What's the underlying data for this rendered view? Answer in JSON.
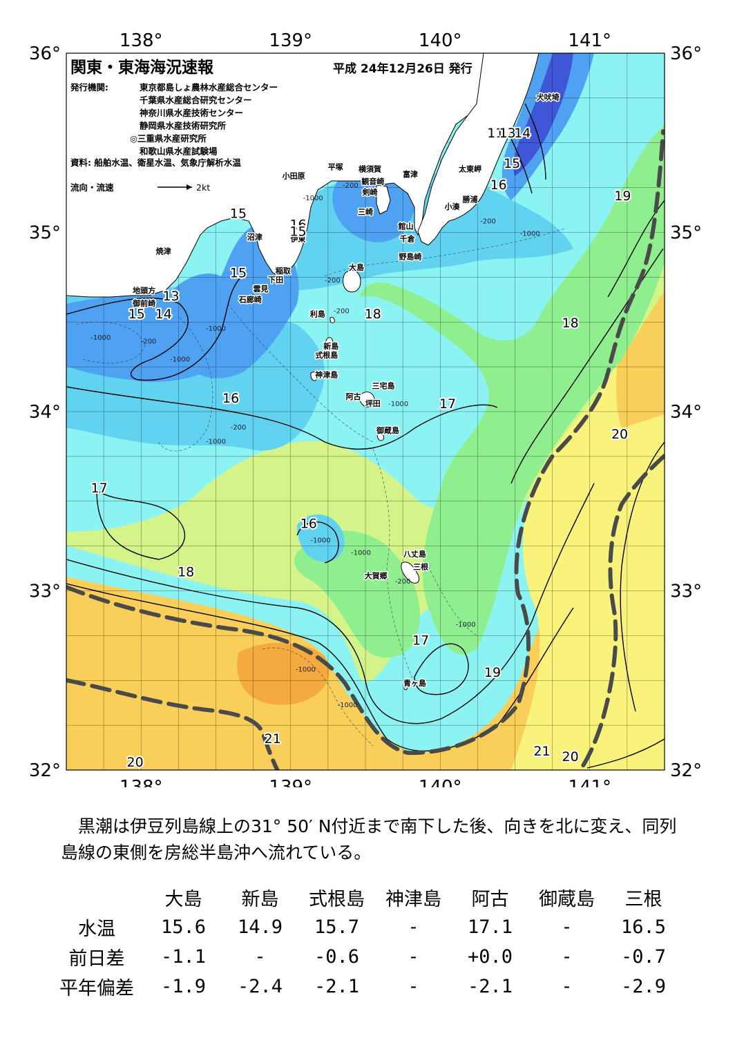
{
  "map": {
    "title": "関東・東海海況速報",
    "issue_date": "平成 24年12月26日 発行",
    "issuer_label": "発行機関:",
    "issuers": [
      "東京都島しょ農林水産総合センター",
      "千葉県水産総合研究センター",
      "神奈川県水産技術センター",
      "静岡県水産技術研究所",
      "◎三重県水産研究所",
      "和歌山県水産試験場"
    ],
    "source": "資料: 船舶水温、衛星水温、気象庁解析水温",
    "flow_legend_label": "流向・流速",
    "flow_legend_value": "2kt",
    "lon_labels": [
      "138°",
      "139°",
      "140°",
      "141°"
    ],
    "lat_labels": [
      "36°",
      "35°",
      "34°",
      "33°",
      "32°"
    ],
    "isotherm_labels": [
      "13",
      "14",
      "15",
      "16",
      "17",
      "18",
      "19",
      "20",
      "21"
    ],
    "isotherm_positions": [
      {
        "t": "15",
        "lon": 138.65,
        "lat": 35.08
      },
      {
        "t": "15",
        "lon": 138.65,
        "lat": 34.75
      },
      {
        "t": "16",
        "lon": 139.05,
        "lat": 35.02
      },
      {
        "t": "15",
        "lon": 139.05,
        "lat": 34.98
      },
      {
        "t": "13",
        "lon": 138.2,
        "lat": 34.62
      },
      {
        "t": "15",
        "lon": 137.97,
        "lat": 34.52
      },
      {
        "t": "14",
        "lon": 138.15,
        "lat": 34.52
      },
      {
        "t": "16",
        "lon": 138.6,
        "lat": 34.05
      },
      {
        "t": "18",
        "lon": 139.55,
        "lat": 34.52
      },
      {
        "t": "17",
        "lon": 140.05,
        "lat": 34.02
      },
      {
        "t": "18",
        "lon": 140.87,
        "lat": 34.47
      },
      {
        "t": "20",
        "lon": 141.2,
        "lat": 33.85
      },
      {
        "t": "17",
        "lon": 137.72,
        "lat": 33.55
      },
      {
        "t": "16",
        "lon": 139.12,
        "lat": 33.35
      },
      {
        "t": "18",
        "lon": 138.3,
        "lat": 33.08
      },
      {
        "t": "17",
        "lon": 139.87,
        "lat": 32.7
      },
      {
        "t": "19",
        "lon": 140.35,
        "lat": 32.52
      },
      {
        "t": "21",
        "lon": 138.88,
        "lat": 32.15
      },
      {
        "t": "20",
        "lon": 137.96,
        "lat": 32.02
      },
      {
        "t": "21",
        "lon": 140.68,
        "lat": 32.08
      },
      {
        "t": "20",
        "lon": 140.87,
        "lat": 32.05
      },
      {
        "t": "19",
        "lon": 141.22,
        "lat": 35.18
      },
      {
        "t": "15",
        "lon": 140.48,
        "lat": 35.36
      },
      {
        "t": "16",
        "lon": 140.39,
        "lat": 35.24
      },
      {
        "t": "11",
        "lon": 140.37,
        "lat": 35.53
      },
      {
        "t": "13",
        "lon": 140.45,
        "lat": 35.53
      },
      {
        "t": "14",
        "lon": 140.55,
        "lat": 35.53
      }
    ],
    "places": [
      {
        "n": "犬吠埼",
        "lon": 140.72,
        "lat": 35.74
      },
      {
        "n": "太東岬",
        "lon": 140.2,
        "lat": 35.34
      },
      {
        "n": "勝浦",
        "lon": 140.2,
        "lat": 35.17
      },
      {
        "n": "小湊",
        "lon": 140.08,
        "lat": 35.13
      },
      {
        "n": "富津",
        "lon": 139.8,
        "lat": 35.31
      },
      {
        "n": "横須賀",
        "lon": 139.53,
        "lat": 35.34
      },
      {
        "n": "観音崎",
        "lon": 139.55,
        "lat": 35.27
      },
      {
        "n": "剣崎",
        "lon": 139.53,
        "lat": 35.21
      },
      {
        "n": "三崎",
        "lon": 139.5,
        "lat": 35.1
      },
      {
        "n": "平塚",
        "lon": 139.3,
        "lat": 35.35
      },
      {
        "n": "小田原",
        "lon": 139.02,
        "lat": 35.3
      },
      {
        "n": "館山",
        "lon": 139.77,
        "lat": 35.02
      },
      {
        "n": "千倉",
        "lon": 139.78,
        "lat": 34.95
      },
      {
        "n": "野島崎",
        "lon": 139.8,
        "lat": 34.85
      },
      {
        "n": "大島",
        "lon": 139.44,
        "lat": 34.79
      },
      {
        "n": "沼津",
        "lon": 138.76,
        "lat": 34.96
      },
      {
        "n": "伊東",
        "lon": 139.05,
        "lat": 34.95
      },
      {
        "n": "焼津",
        "lon": 138.15,
        "lat": 34.88
      },
      {
        "n": "稲取",
        "lon": 138.95,
        "lat": 34.77
      },
      {
        "n": "下田",
        "lon": 138.9,
        "lat": 34.72
      },
      {
        "n": "雲見",
        "lon": 138.8,
        "lat": 34.67
      },
      {
        "n": "石廊崎",
        "lon": 138.73,
        "lat": 34.61
      },
      {
        "n": "地頭方",
        "lon": 138.02,
        "lat": 34.66
      },
      {
        "n": "御前崎",
        "lon": 138.02,
        "lat": 34.59
      },
      {
        "n": "利島",
        "lon": 139.18,
        "lat": 34.53
      },
      {
        "n": "新島",
        "lon": 139.27,
        "lat": 34.35
      },
      {
        "n": "式根島",
        "lon": 139.24,
        "lat": 34.3
      },
      {
        "n": "神津島",
        "lon": 139.24,
        "lat": 34.19
      },
      {
        "n": "阿古",
        "lon": 139.42,
        "lat": 34.07
      },
      {
        "n": "三宅島",
        "lon": 139.62,
        "lat": 34.13
      },
      {
        "n": "坪田",
        "lon": 139.55,
        "lat": 34.03
      },
      {
        "n": "御蔵島",
        "lon": 139.65,
        "lat": 33.88
      },
      {
        "n": "八丈島",
        "lon": 139.83,
        "lat": 33.19
      },
      {
        "n": "三根",
        "lon": 139.87,
        "lat": 33.12
      },
      {
        "n": "大賀郷",
        "lon": 139.57,
        "lat": 33.07
      },
      {
        "n": "青ヶ島",
        "lon": 139.83,
        "lat": 32.47
      }
    ],
    "depth_labels": [
      {
        "t": "-200",
        "lon": 139.4,
        "lat": 35.25
      },
      {
        "t": "-1000",
        "lon": 139.15,
        "lat": 35.18
      },
      {
        "t": "-200",
        "lon": 140.32,
        "lat": 35.05
      },
      {
        "t": "-1000",
        "lon": 140.6,
        "lat": 34.98
      },
      {
        "t": "-200",
        "lon": 139.28,
        "lat": 34.72
      },
      {
        "t": "-200",
        "lon": 139.34,
        "lat": 34.55
      },
      {
        "t": "-1000",
        "lon": 138.5,
        "lat": 34.45
      },
      {
        "t": "-1000",
        "lon": 137.73,
        "lat": 34.4
      },
      {
        "t": "-200",
        "lon": 138.05,
        "lat": 34.38
      },
      {
        "t": "-1000",
        "lon": 138.26,
        "lat": 34.28
      },
      {
        "t": "-200",
        "lon": 138.65,
        "lat": 33.9
      },
      {
        "t": "-1000",
        "lon": 138.5,
        "lat": 33.82
      },
      {
        "t": "-1000",
        "lon": 139.72,
        "lat": 34.03
      },
      {
        "t": "-1000",
        "lon": 139.2,
        "lat": 33.27
      },
      {
        "t": "-1000",
        "lon": 139.47,
        "lat": 33.2
      },
      {
        "t": "-200",
        "lon": 139.75,
        "lat": 33.04
      },
      {
        "t": "-1000",
        "lon": 140.17,
        "lat": 32.8
      },
      {
        "t": "-1000",
        "lon": 139.1,
        "lat": 32.55
      },
      {
        "t": "-1000",
        "lon": 139.38,
        "lat": 32.35
      }
    ],
    "colors": {
      "cold": "#3f57d6",
      "cool": "#4fa2f2",
      "mid": "#61d3f1",
      "cyan": "#8cf3f3",
      "green": "#8fef8f",
      "lime": "#d4f48a",
      "yellow": "#f9f37c",
      "warm": "#f9cf5a",
      "orange": "#f4aa3f",
      "land": "#ffffff",
      "kuroshio": "#4a4a4a"
    }
  },
  "description": "黒潮は伊豆列島線上の31° 50′ N付近まで南下した後、向きを北に変え、同列島線の東側を房総半島沖へ流れている。",
  "table": {
    "columns": [
      "大島",
      "新島",
      "式根島",
      "神津島",
      "阿古",
      "御蔵島",
      "三根"
    ],
    "rows": [
      {
        "label": "水温",
        "values": [
          "15.6",
          "14.9",
          "15.7",
          "-",
          "17.1",
          "-",
          "16.5"
        ]
      },
      {
        "label": "前日差",
        "values": [
          "-1.1",
          "-",
          "-0.6",
          "-",
          "+0.0",
          "-",
          "-0.7"
        ]
      },
      {
        "label": "平年偏差",
        "values": [
          "-1.9",
          "-2.4",
          "-2.1",
          "-",
          "-2.1",
          "-",
          "-2.9"
        ]
      }
    ]
  }
}
